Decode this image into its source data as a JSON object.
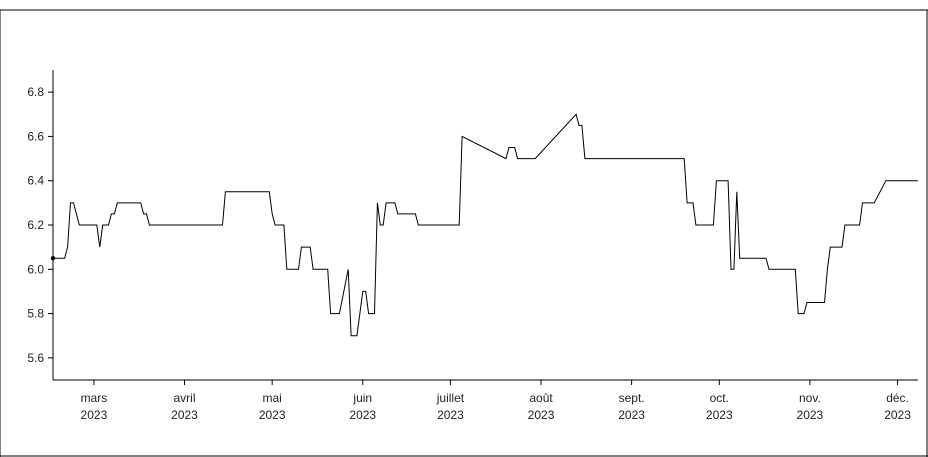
{
  "chart_data": {
    "type": "line",
    "title": "",
    "xlabel": "",
    "ylabel": "",
    "ylim": [
      5.5,
      6.9
    ],
    "xlim": [
      "2023-02-15",
      "2023-12-08"
    ],
    "y_ticks": [
      5.6,
      5.8,
      6.0,
      6.2,
      6.4,
      6.6,
      6.8
    ],
    "y_tick_labels": [
      "5.6",
      "5.8",
      "6.0",
      "6.2",
      "6.4",
      "6.6",
      "6.8"
    ],
    "x_ticks": [
      {
        "date": "2023-03-01",
        "month": "mars",
        "year": "2023"
      },
      {
        "date": "2023-04-01",
        "month": "avril",
        "year": "2023"
      },
      {
        "date": "2023-05-01",
        "month": "mai",
        "year": "2023"
      },
      {
        "date": "2023-06-01",
        "month": "juin",
        "year": "2023"
      },
      {
        "date": "2023-07-01",
        "month": "juillet",
        "year": "2023"
      },
      {
        "date": "2023-08-01",
        "month": "août",
        "year": "2023"
      },
      {
        "date": "2023-09-01",
        "month": "sept.",
        "year": "2023"
      },
      {
        "date": "2023-10-01",
        "month": "oct.",
        "year": "2023"
      },
      {
        "date": "2023-11-01",
        "month": "nov.",
        "year": "2023"
      },
      {
        "date": "2023-12-01",
        "month": "déc.",
        "year": "2023"
      }
    ],
    "grid": false,
    "legend": "none",
    "colors": {
      "line": "#000000",
      "axis": "#000000",
      "text": "#222222"
    },
    "series": [
      {
        "x": [
          "2023-02-15",
          "2023-02-19",
          "2023-02-20",
          "2023-02-21",
          "2023-02-22",
          "2023-02-23",
          "2023-02-24",
          "2023-02-25",
          "2023-03-02",
          "2023-03-03",
          "2023-03-04",
          "2023-03-06",
          "2023-03-07",
          "2023-03-08",
          "2023-03-09",
          "2023-03-11",
          "2023-03-16",
          "2023-03-17",
          "2023-03-18",
          "2023-03-19",
          "2023-03-20",
          "2023-04-14",
          "2023-04-15",
          "2023-04-30",
          "2023-05-01",
          "2023-05-02",
          "2023-05-05",
          "2023-05-06",
          "2023-05-10",
          "2023-05-11",
          "2023-05-14",
          "2023-05-15",
          "2023-05-20",
          "2023-05-21",
          "2023-05-23",
          "2023-05-24",
          "2023-05-27",
          "2023-05-28",
          "2023-05-29",
          "2023-05-30",
          "2023-06-01",
          "2023-06-02",
          "2023-06-03",
          "2023-06-04",
          "2023-06-05",
          "2023-06-06",
          "2023-06-07",
          "2023-06-08",
          "2023-06-09",
          "2023-06-10",
          "2023-06-12",
          "2023-06-13",
          "2023-06-14",
          "2023-06-15",
          "2023-06-16",
          "2023-06-19",
          "2023-06-20",
          "2023-06-21",
          "2023-06-22",
          "2023-07-04",
          "2023-07-05",
          "2023-07-20",
          "2023-07-21",
          "2023-07-22",
          "2023-07-23",
          "2023-07-24",
          "2023-07-29",
          "2023-07-30",
          "2023-08-13",
          "2023-08-14",
          "2023-08-15",
          "2023-08-16",
          "2023-08-17",
          "2023-09-19",
          "2023-09-20",
          "2023-09-21",
          "2023-09-22",
          "2023-09-23",
          "2023-09-29",
          "2023-09-30",
          "2023-10-04",
          "2023-10-05",
          "2023-10-06",
          "2023-10-07",
          "2023-10-08",
          "2023-10-09",
          "2023-10-17",
          "2023-10-18",
          "2023-10-27",
          "2023-10-28",
          "2023-10-30",
          "2023-10-31",
          "2023-11-06",
          "2023-11-07",
          "2023-11-08",
          "2023-11-12",
          "2023-11-13",
          "2023-11-18",
          "2023-11-19",
          "2023-11-22",
          "2023-11-23",
          "2023-11-27",
          "2023-11-28",
          "2023-12-08"
        ],
        "values": [
          6.05,
          6.05,
          6.1,
          6.3,
          6.3,
          6.25,
          6.2,
          6.2,
          6.2,
          6.1,
          6.2,
          6.2,
          6.25,
          6.25,
          6.3,
          6.3,
          6.3,
          6.3,
          6.25,
          6.25,
          6.2,
          6.2,
          6.35,
          6.35,
          6.25,
          6.2,
          6.2,
          6.0,
          6.0,
          6.1,
          6.1,
          6.0,
          6.0,
          5.8,
          5.8,
          5.8,
          6.0,
          5.7,
          5.7,
          5.7,
          5.9,
          5.9,
          5.8,
          5.8,
          5.8,
          6.3,
          6.2,
          6.2,
          6.3,
          6.3,
          6.3,
          6.25,
          6.25,
          6.25,
          6.25,
          6.25,
          6.2,
          6.2,
          6.2,
          6.2,
          6.6,
          6.5,
          6.55,
          6.55,
          6.55,
          6.5,
          6.5,
          6.5,
          6.7,
          6.65,
          6.65,
          6.5,
          6.5,
          6.5,
          6.3,
          6.3,
          6.3,
          6.2,
          6.2,
          6.4,
          6.4,
          6.0,
          6.0,
          6.35,
          6.05,
          6.05,
          6.05,
          6.0,
          6.0,
          5.8,
          5.8,
          5.85,
          5.85,
          6.0,
          6.1,
          6.1,
          6.2,
          6.2,
          6.3,
          6.3,
          6.3,
          6.4,
          6.4,
          6.4
        ]
      }
    ]
  }
}
